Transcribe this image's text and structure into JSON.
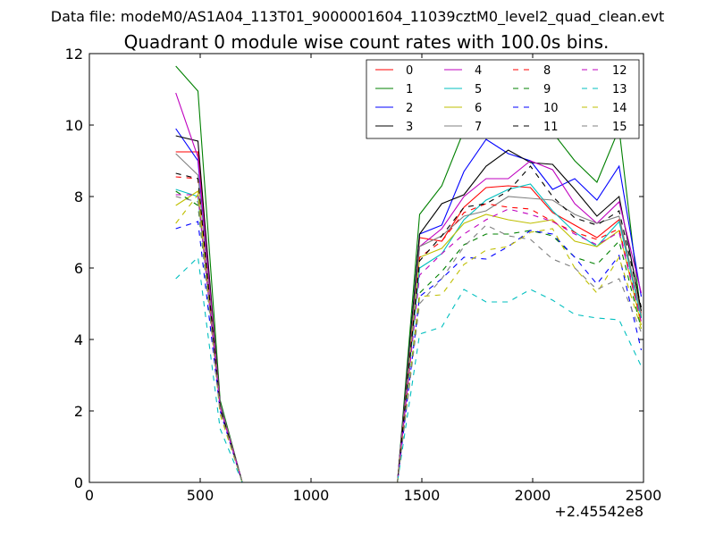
{
  "suptitle": "Data file: modeM0/AS1A04_113T01_9000001604_11039cztM0_level2_quad_clean.evt",
  "chart_data": {
    "type": "line",
    "title": "Quadrant 0 module wise count rates with 100.0s bins.",
    "xlabel": "",
    "ylabel": "",
    "x_offset_label": "+2.45542e8",
    "xlim": [
      0,
      2500
    ],
    "ylim": [
      0,
      12
    ],
    "xticks": [
      0,
      500,
      1000,
      1500,
      2000,
      2500
    ],
    "yticks": [
      0,
      2,
      4,
      6,
      8,
      10,
      12
    ],
    "grid": false,
    "legend_position": "top-right",
    "legend_columns": 4,
    "x": [
      390,
      490,
      590,
      690,
      790,
      890,
      990,
      1090,
      1190,
      1290,
      1390,
      1490,
      1590,
      1690,
      1790,
      1890,
      1990,
      2090,
      2190,
      2290,
      2390,
      2490
    ],
    "series": [
      {
        "name": "0",
        "color": "#ff0000",
        "dash": "solid",
        "values": [
          9.25,
          9.25,
          2.2,
          0,
          0,
          0,
          0,
          0,
          0,
          0,
          0,
          6.85,
          6.75,
          7.7,
          8.25,
          8.3,
          8.25,
          7.55,
          7.2,
          6.85,
          7.35,
          4.75
        ]
      },
      {
        "name": "1",
        "color": "#008000",
        "dash": "solid",
        "values": [
          11.65,
          10.95,
          2.3,
          0,
          0,
          0,
          0,
          0,
          0,
          0,
          0,
          7.5,
          8.3,
          9.85,
          10.1,
          9.95,
          9.95,
          9.8,
          9.0,
          8.4,
          9.9,
          4.6
        ]
      },
      {
        "name": "2",
        "color": "#0000ff",
        "dash": "solid",
        "values": [
          9.9,
          9.0,
          2.2,
          0,
          0,
          0,
          0,
          0,
          0,
          0,
          0,
          6.95,
          7.2,
          8.7,
          9.6,
          9.2,
          9.0,
          8.2,
          8.5,
          7.9,
          8.85,
          5.2
        ]
      },
      {
        "name": "3",
        "color": "#000000",
        "dash": "solid",
        "values": [
          9.7,
          9.55,
          2.2,
          0,
          0,
          0,
          0,
          0,
          0,
          0,
          0,
          6.95,
          7.8,
          8.05,
          8.85,
          9.3,
          8.95,
          8.9,
          8.2,
          7.45,
          8.0,
          4.8
        ]
      },
      {
        "name": "4",
        "color": "#bf00bf",
        "dash": "solid",
        "values": [
          10.9,
          9.1,
          2.2,
          0,
          0,
          0,
          0,
          0,
          0,
          0,
          0,
          6.6,
          7.1,
          8.0,
          8.5,
          8.5,
          9.0,
          8.75,
          7.8,
          7.25,
          7.85,
          5.3
        ]
      },
      {
        "name": "5",
        "color": "#00bfbf",
        "dash": "solid",
        "values": [
          8.2,
          8.0,
          2.1,
          0,
          0,
          0,
          0,
          0,
          0,
          0,
          0,
          6.0,
          6.4,
          7.35,
          7.9,
          8.2,
          8.35,
          7.6,
          7.0,
          6.6,
          7.3,
          4.6
        ]
      },
      {
        "name": "6",
        "color": "#bfbf00",
        "dash": "solid",
        "values": [
          7.75,
          8.15,
          2.1,
          0,
          0,
          0,
          0,
          0,
          0,
          0,
          0,
          6.3,
          6.55,
          7.25,
          7.5,
          7.35,
          7.25,
          7.35,
          6.75,
          6.6,
          7.05,
          4.4
        ]
      },
      {
        "name": "7",
        "color": "#808080",
        "dash": "solid",
        "values": [
          9.2,
          8.6,
          2.2,
          0,
          0,
          0,
          0,
          0,
          0,
          0,
          0,
          6.6,
          6.9,
          7.45,
          7.6,
          8.0,
          7.95,
          7.9,
          7.5,
          7.25,
          7.45,
          4.7
        ]
      },
      {
        "name": "8",
        "color": "#ff0000",
        "dash": "dashed",
        "values": [
          8.55,
          8.5,
          2.1,
          0,
          0,
          0,
          0,
          0,
          0,
          0,
          0,
          6.3,
          6.75,
          7.55,
          7.8,
          7.7,
          7.65,
          7.3,
          7.0,
          6.8,
          7.1,
          4.5
        ]
      },
      {
        "name": "9",
        "color": "#008000",
        "dash": "dashed",
        "values": [
          8.15,
          7.75,
          2.05,
          0,
          0,
          0,
          0,
          0,
          0,
          0,
          0,
          5.3,
          5.9,
          6.65,
          6.95,
          6.95,
          7.05,
          6.9,
          6.3,
          6.1,
          6.75,
          4.3
        ]
      },
      {
        "name": "10",
        "color": "#0000ff",
        "dash": "dashed",
        "values": [
          7.1,
          7.3,
          2.0,
          0,
          0,
          0,
          0,
          0,
          0,
          0,
          0,
          5.2,
          5.7,
          6.3,
          6.25,
          6.6,
          7.05,
          6.95,
          6.3,
          5.55,
          6.35,
          3.7
        ]
      },
      {
        "name": "11",
        "color": "#000000",
        "dash": "dashed",
        "values": [
          8.65,
          8.5,
          2.1,
          0,
          0,
          0,
          0,
          0,
          0,
          0,
          0,
          6.2,
          6.9,
          7.7,
          7.8,
          8.15,
          8.85,
          8.0,
          7.4,
          7.2,
          7.6,
          4.9
        ]
      },
      {
        "name": "12",
        "color": "#bf00bf",
        "dash": "dashed",
        "values": [
          8.05,
          8.05,
          2.1,
          0,
          0,
          0,
          0,
          0,
          0,
          0,
          0,
          5.8,
          6.4,
          6.95,
          7.35,
          7.65,
          7.5,
          7.3,
          6.95,
          6.65,
          7.0,
          4.5
        ]
      },
      {
        "name": "13",
        "color": "#00bfbf",
        "dash": "dashed",
        "values": [
          5.7,
          6.3,
          1.5,
          0,
          0,
          0,
          0,
          0,
          0,
          0,
          0,
          4.15,
          4.35,
          5.4,
          5.05,
          5.05,
          5.4,
          5.1,
          4.7,
          4.6,
          4.55,
          3.25
        ]
      },
      {
        "name": "14",
        "color": "#bfbf00",
        "dash": "dashed",
        "values": [
          7.25,
          8.05,
          1.9,
          0,
          0,
          0,
          0,
          0,
          0,
          0,
          0,
          5.2,
          5.25,
          6.1,
          6.5,
          6.6,
          7.0,
          7.1,
          6.0,
          5.3,
          6.3,
          4.3
        ]
      },
      {
        "name": "15",
        "color": "#808080",
        "dash": "dashed",
        "values": [
          8.0,
          7.85,
          2.0,
          0,
          0,
          0,
          0,
          0,
          0,
          0,
          0,
          5.0,
          5.7,
          6.6,
          7.2,
          6.9,
          6.8,
          6.25,
          6.0,
          5.4,
          5.7,
          4.2
        ]
      }
    ]
  }
}
